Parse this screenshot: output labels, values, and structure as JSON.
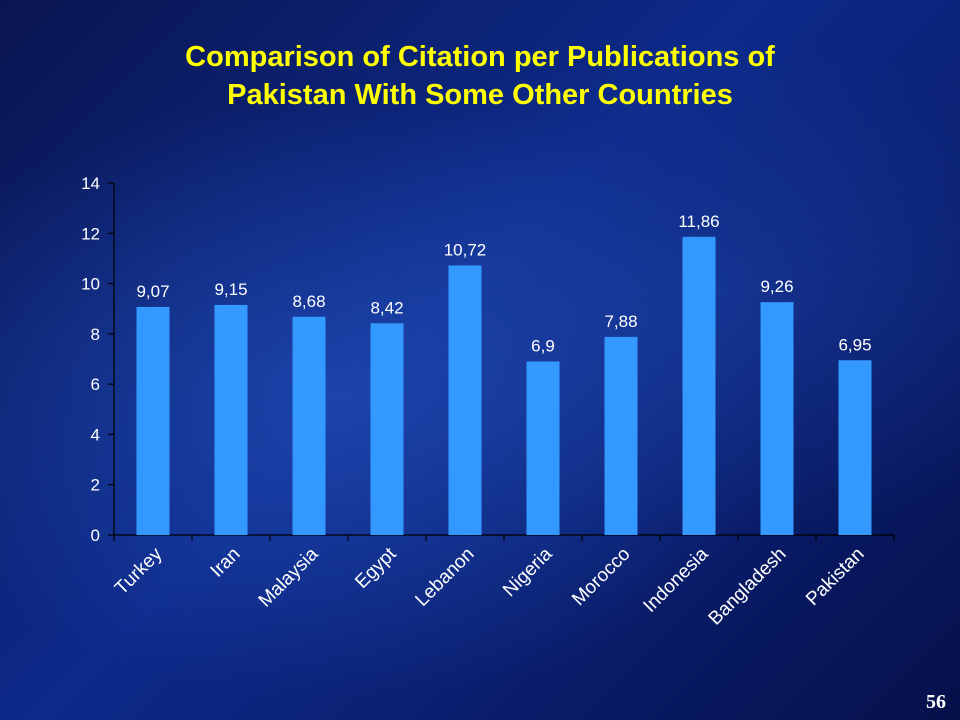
{
  "slide": {
    "title_line1": "Comparison of Citation per Publications of",
    "title_line2": "Pakistan With Some Other Countries",
    "page_number": "56",
    "title_color": "#ffff00",
    "bar_color": "#3399ff"
  },
  "chart_data": {
    "type": "bar",
    "title": "",
    "xlabel": "",
    "ylabel": "",
    "categories": [
      "Turkey",
      "Iran",
      "Malaysia",
      "Egypt",
      "Lebanon",
      "Nigeria",
      "Morocco",
      "Indonesia",
      "Bangladesh",
      "Pakistan"
    ],
    "values": [
      9.07,
      9.15,
      8.68,
      8.42,
      10.72,
      6.9,
      7.88,
      11.86,
      9.26,
      6.95
    ],
    "data_labels": [
      "9,07",
      "9,15",
      "8,68",
      "8,42",
      "10,72",
      "6,9",
      "7,88",
      "11,86",
      "9,26",
      "6,95"
    ],
    "ylim": [
      0,
      14
    ],
    "yticks": [
      "0",
      "2",
      "4",
      "6",
      "8",
      "10",
      "12",
      "14"
    ],
    "grid": false,
    "legend": "none"
  }
}
